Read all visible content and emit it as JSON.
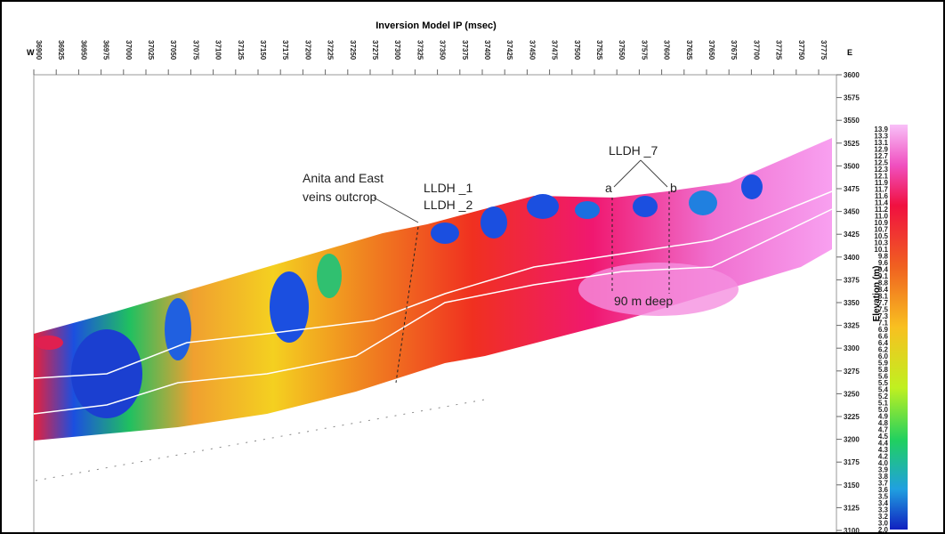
{
  "chart_data": {
    "type": "contour",
    "title": "Inversion Model IP (msec)",
    "left_label": "W",
    "right_label": "E",
    "ylabel": "Elevation (m)",
    "xlim": [
      36900,
      37775
    ],
    "xticks": [
      36900,
      36925,
      36950,
      36975,
      37000,
      37025,
      37050,
      37075,
      37100,
      37125,
      37150,
      37175,
      37200,
      37225,
      37250,
      37275,
      37300,
      37325,
      37350,
      37375,
      37400,
      37425,
      37450,
      37475,
      37500,
      37525,
      37550,
      37575,
      37600,
      37625,
      37650,
      37675,
      37700,
      37725,
      37750,
      37775
    ],
    "ylim": [
      3100,
      3600
    ],
    "yticks": [
      3100,
      3125,
      3150,
      3175,
      3200,
      3225,
      3250,
      3275,
      3300,
      3325,
      3350,
      3375,
      3400,
      3425,
      3450,
      3475,
      3500,
      3525,
      3550,
      3575,
      3600
    ],
    "colorbar_labels": [
      "13.9",
      "13.3",
      "13.1",
      "12.9",
      "12.7",
      "12.5",
      "12.3",
      "12.1",
      "11.9",
      "11.7",
      "11.6",
      "11.4",
      "11.2",
      "11.0",
      "10.9",
      "10.7",
      "10.5",
      "10.3",
      "10.1",
      "9.8",
      "9.6",
      "9.4",
      "9.1",
      "8.8",
      "8.4",
      "8.1",
      "7.7",
      "7.5",
      "7.3",
      "7.1",
      "6.9",
      "6.6",
      "6.4",
      "6.2",
      "6.0",
      "5.9",
      "5.8",
      "5.6",
      "5.5",
      "5.4",
      "5.2",
      "5.1",
      "5.0",
      "4.9",
      "4.8",
      "4.7",
      "4.5",
      "4.4",
      "4.3",
      "4.2",
      "4.0",
      "3.9",
      "3.8",
      "3.7",
      "3.6",
      "3.5",
      "3.4",
      "3.3",
      "3.2",
      "3.0",
      "2.0"
    ],
    "annotations": [
      "Anita and East",
      "veins outcrop",
      "LLDH _1",
      "LLDH _2",
      "LLDH _7",
      "a",
      "b",
      "90 m deep"
    ]
  }
}
